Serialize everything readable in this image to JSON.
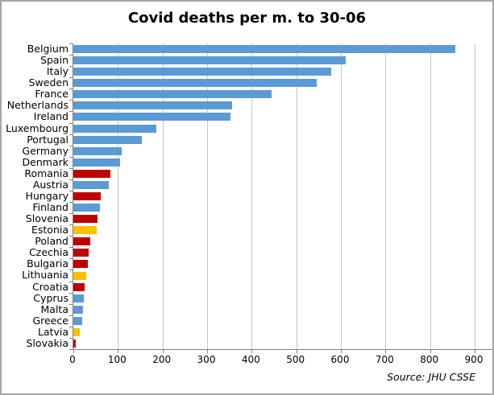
{
  "title": "Covid deaths per m. to 30-06",
  "source_note": "Source: JHU CSSE",
  "colors": {
    "blue": "#5B9BD5",
    "red": "#C00000",
    "yellow": "#FFC000",
    "gridline": "#C6C6C6",
    "axis": "#808080",
    "frame": "#A6A6A6",
    "background": "#FFFFFF",
    "text": "#000000"
  },
  "chart_data": {
    "type": "bar",
    "orientation": "horizontal",
    "title": "Covid deaths per m. to 30-06",
    "source": "Source: JHU CSSE",
    "xlabel": "",
    "ylabel": "",
    "xlim": [
      0,
      900
    ],
    "x_ticks": [
      0,
      100,
      200,
      300,
      400,
      500,
      600,
      700,
      800,
      900
    ],
    "grid": "vertical",
    "legend": "none",
    "categories": [
      "Belgium",
      "Spain",
      "Italy",
      "Sweden",
      "France",
      "Netherlands",
      "Ireland",
      "Luxembourg",
      "Portugal",
      "Germany",
      "Denmark",
      "Romania",
      "Austria",
      "Hungary",
      "Finland",
      "Slovenia",
      "Estonia",
      "Poland",
      "Czechia",
      "Bulgaria",
      "Lithuania",
      "Croatia",
      "Cyprus",
      "Malta",
      "Greece",
      "Latvia",
      "Slovakia"
    ],
    "values": [
      856,
      611,
      578,
      545,
      444,
      356,
      353,
      186,
      153,
      109,
      104,
      84,
      80,
      61,
      60,
      54,
      53,
      38,
      34,
      33,
      29,
      26,
      23,
      21,
      19,
      15,
      6
    ],
    "bar_colors": [
      "#5B9BD5",
      "#5B9BD5",
      "#5B9BD5",
      "#5B9BD5",
      "#5B9BD5",
      "#5B9BD5",
      "#5B9BD5",
      "#5B9BD5",
      "#5B9BD5",
      "#5B9BD5",
      "#5B9BD5",
      "#C00000",
      "#5B9BD5",
      "#C00000",
      "#5B9BD5",
      "#C00000",
      "#FFC000",
      "#C00000",
      "#C00000",
      "#C00000",
      "#FFC000",
      "#C00000",
      "#5B9BD5",
      "#5B9BD5",
      "#5B9BD5",
      "#FFC000",
      "#C00000"
    ]
  }
}
